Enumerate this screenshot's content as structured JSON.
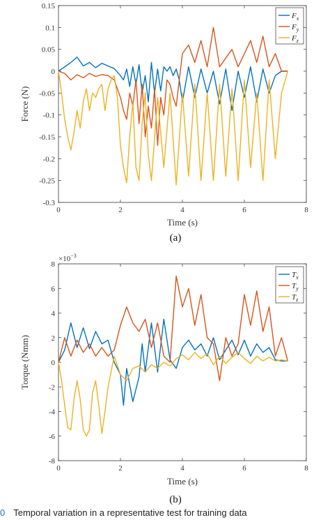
{
  "caption": {
    "number": "0",
    "text": "Temporal variation in a representative test for training data"
  },
  "colors": {
    "x": "#0072BD",
    "y": "#D95319",
    "z": "#EDB120",
    "axis": "#333333"
  },
  "chart_data": [
    {
      "type": "line",
      "panel_label": "(a)",
      "xlabel": "Time (s)",
      "ylabel": "Force (N)",
      "xlim": [
        0,
        8
      ],
      "ylim": [
        -0.3,
        0.15
      ],
      "xticks": [
        0,
        2,
        4,
        6,
        8
      ],
      "yticks": [
        -0.3,
        -0.25,
        -0.2,
        -0.15,
        -0.1,
        -0.05,
        0,
        0.05,
        0.1,
        0.15
      ],
      "ytick_labels": [
        "-0.3",
        "-0.25",
        "-0.2",
        "-0.15",
        "-0.1",
        "-0.05",
        "0",
        "0.05",
        "0.1",
        "0.15"
      ],
      "legend": "top-right",
      "grid": false,
      "series": [
        {
          "name": "F_x",
          "label_main": "F",
          "label_sub": "x",
          "color_key": "x",
          "x": [
            0,
            0.2,
            0.4,
            0.6,
            0.8,
            1.0,
            1.2,
            1.4,
            1.6,
            1.8,
            2.0,
            2.1,
            2.2,
            2.3,
            2.4,
            2.5,
            2.6,
            2.7,
            2.8,
            2.9,
            3.0,
            3.1,
            3.2,
            3.3,
            3.4,
            3.5,
            3.6,
            3.7,
            3.8,
            3.9,
            4.0,
            4.2,
            4.4,
            4.6,
            4.8,
            5.0,
            5.2,
            5.4,
            5.6,
            5.8,
            6.0,
            6.2,
            6.4,
            6.6,
            6.8,
            7.0,
            7.2,
            7.4
          ],
          "y": [
            0,
            0.01,
            0.02,
            0.032,
            0.012,
            0.02,
            0.008,
            0.018,
            0.012,
            0.006,
            -0.01,
            -0.02,
            0.005,
            -0.035,
            0.01,
            -0.03,
            0.015,
            -0.05,
            -0.01,
            -0.07,
            0.02,
            -0.05,
            0.005,
            -0.045,
            0.01,
            0,
            0.01,
            -0.01,
            0.005,
            -0.02,
            -0.07,
            0.01,
            -0.06,
            0.005,
            -0.05,
            0,
            -0.075,
            0.005,
            -0.09,
            0,
            -0.06,
            0.01,
            -0.07,
            0.005,
            -0.05,
            -0.01,
            0,
            0
          ]
        },
        {
          "name": "F_y",
          "label_main": "F",
          "label_sub": "y",
          "color_key": "y",
          "x": [
            0,
            0.2,
            0.4,
            0.6,
            0.8,
            1.0,
            1.2,
            1.4,
            1.6,
            1.8,
            2.0,
            2.1,
            2.2,
            2.3,
            2.4,
            2.5,
            2.6,
            2.7,
            2.8,
            2.9,
            3.0,
            3.1,
            3.2,
            3.3,
            3.4,
            3.5,
            3.6,
            3.7,
            3.8,
            3.9,
            4.0,
            4.2,
            4.4,
            4.6,
            4.8,
            5.0,
            5.2,
            5.4,
            5.6,
            5.8,
            6.0,
            6.2,
            6.4,
            6.6,
            6.8,
            7.0,
            7.2,
            7.4
          ],
          "y": [
            0,
            -0.005,
            -0.02,
            -0.008,
            -0.015,
            -0.005,
            -0.012,
            -0.008,
            -0.01,
            -0.02,
            -0.06,
            -0.09,
            -0.11,
            -0.05,
            -0.08,
            -0.02,
            -0.12,
            -0.03,
            -0.15,
            -0.08,
            -0.13,
            -0.04,
            -0.17,
            -0.06,
            -0.1,
            -0.02,
            -0.03,
            -0.06,
            -0.08,
            -0.02,
            0.04,
            0.06,
            0.02,
            0.07,
            0.01,
            0.1,
            0.01,
            0.03,
            0.05,
            0.01,
            0.04,
            0.07,
            0.02,
            0.08,
            0.01,
            0.04,
            0,
            0
          ]
        },
        {
          "name": "F_z",
          "label_main": "F",
          "label_sub": "z",
          "color_key": "z",
          "x": [
            0,
            0.1,
            0.2,
            0.3,
            0.4,
            0.5,
            0.6,
            0.7,
            0.8,
            0.9,
            1.0,
            1.1,
            1.2,
            1.3,
            1.4,
            1.5,
            1.6,
            1.7,
            1.8,
            1.9,
            2.0,
            2.1,
            2.2,
            2.3,
            2.4,
            2.5,
            2.6,
            2.7,
            2.8,
            2.9,
            3.0,
            3.2,
            3.4,
            3.6,
            3.8,
            4.0,
            4.2,
            4.4,
            4.6,
            4.8,
            5.0,
            5.2,
            5.4,
            5.6,
            5.8,
            6.0,
            6.2,
            6.4,
            6.6,
            6.8,
            7.0,
            7.2,
            7.4
          ],
          "y": [
            0,
            -0.05,
            -0.11,
            -0.15,
            -0.18,
            -0.14,
            -0.09,
            -0.13,
            -0.07,
            -0.04,
            -0.09,
            -0.05,
            -0.06,
            -0.04,
            -0.03,
            -0.09,
            -0.04,
            -0.02,
            -0.01,
            -0.06,
            -0.17,
            -0.22,
            -0.255,
            -0.15,
            -0.07,
            -0.22,
            -0.25,
            -0.12,
            -0.05,
            -0.19,
            -0.25,
            -0.06,
            -0.22,
            -0.05,
            -0.26,
            -0.05,
            -0.24,
            -0.03,
            -0.25,
            -0.05,
            -0.25,
            -0.03,
            -0.24,
            -0.04,
            -0.25,
            -0.02,
            -0.22,
            -0.05,
            -0.25,
            -0.02,
            -0.2,
            -0.05,
            0
          ]
        }
      ]
    },
    {
      "type": "line",
      "panel_label": "(b)",
      "xlabel": "Time (s)",
      "ylabel": "Torque (Nmm)",
      "exponent_label": "×10",
      "exponent_power": "−3",
      "xlim": [
        0,
        8
      ],
      "ylim": [
        -8,
        8
      ],
      "xticks": [
        0,
        2,
        4,
        6,
        8
      ],
      "yticks": [
        -8,
        -6,
        -4,
        -2,
        0,
        2,
        4,
        6,
        8
      ],
      "ytick_labels": [
        "-8",
        "-6",
        "-4",
        "-2",
        "0",
        "2",
        "4",
        "6",
        "8"
      ],
      "legend": "top-right",
      "grid": false,
      "series": [
        {
          "name": "T_x",
          "label_main": "T",
          "label_sub": "x",
          "color_key": "x",
          "x": [
            0,
            0.2,
            0.4,
            0.6,
            0.8,
            1.0,
            1.2,
            1.4,
            1.6,
            1.8,
            2.0,
            2.1,
            2.2,
            2.4,
            2.6,
            2.7,
            2.8,
            3.0,
            3.2,
            3.4,
            3.6,
            3.8,
            4.0,
            4.2,
            4.4,
            4.6,
            4.8,
            5.0,
            5.2,
            5.4,
            5.6,
            5.8,
            6.0,
            6.2,
            6.4,
            6.6,
            6.8,
            7.0,
            7.2,
            7.4
          ],
          "y": [
            0,
            1,
            3.2,
            1.2,
            2.8,
            1.1,
            2.5,
            1.5,
            1.8,
            0,
            -1,
            -3.5,
            -0.5,
            -3.2,
            -1.2,
            1.5,
            -0.8,
            3.2,
            -0.8,
            3.5,
            0.2,
            -0.5,
            1.2,
            1.8,
            1,
            1.5,
            0.5,
            2,
            0.2,
            1,
            1.8,
            0.6,
            1.8,
            0.5,
            1.5,
            0.8,
            1.2,
            0.2,
            0.1,
            0.1
          ]
        },
        {
          "name": "T_y",
          "label_main": "T",
          "label_sub": "y",
          "color_key": "y",
          "x": [
            0,
            0.2,
            0.4,
            0.6,
            0.8,
            1.0,
            1.2,
            1.4,
            1.6,
            1.8,
            2.0,
            2.2,
            2.4,
            2.6,
            2.8,
            3.0,
            3.2,
            3.4,
            3.6,
            3.8,
            4.0,
            4.2,
            4.4,
            4.6,
            4.8,
            5.0,
            5.2,
            5.4,
            5.6,
            5.8,
            6.0,
            6.2,
            6.4,
            6.6,
            6.8,
            7.0,
            7.2,
            7.4
          ],
          "y": [
            0,
            2,
            0.5,
            1.8,
            0.8,
            1.5,
            0.5,
            1.2,
            0.5,
            1,
            3,
            4.5,
            3.2,
            2.5,
            3.5,
            1.2,
            3.2,
            0.5,
            0,
            7,
            4.5,
            6,
            3,
            5.5,
            2,
            1.5,
            -1.5,
            2,
            0.5,
            1.5,
            5.5,
            3,
            5.8,
            2.5,
            4.5,
            0.5,
            2,
            0.1
          ]
        },
        {
          "name": "T_z",
          "label_main": "T",
          "label_sub": "z",
          "color_key": "z",
          "x": [
            0,
            0.1,
            0.2,
            0.3,
            0.4,
            0.5,
            0.6,
            0.7,
            0.8,
            0.9,
            1.0,
            1.1,
            1.2,
            1.3,
            1.4,
            1.5,
            1.6,
            1.8,
            2.0,
            2.2,
            2.4,
            2.6,
            2.8,
            3.0,
            3.2,
            3.4,
            3.6,
            3.8,
            4.0,
            4.2,
            4.4,
            4.6,
            4.8,
            5.0,
            5.2,
            5.4,
            5.6,
            5.8,
            6.0,
            6.2,
            6.4,
            6.6,
            6.8,
            7.0,
            7.2,
            7.4
          ],
          "y": [
            0,
            -1.5,
            -3.5,
            -5.3,
            -5.5,
            -3,
            -1.5,
            -3,
            -5.5,
            -6,
            -5.5,
            -2.5,
            -1.5,
            -3.5,
            -5.8,
            -4,
            -2,
            0.5,
            -1,
            -1.5,
            -0.5,
            -0.3,
            -0.8,
            -0.2,
            -0.5,
            0,
            -0.3,
            0.3,
            0.6,
            0.2,
            0.8,
            0.3,
            0.7,
            -0.2,
            0.5,
            -0.1,
            0.4,
            0.8,
            0.3,
            -0.1,
            0.5,
            0.1,
            0.4,
            0.1,
            0.2,
            0.1
          ]
        }
      ]
    }
  ]
}
